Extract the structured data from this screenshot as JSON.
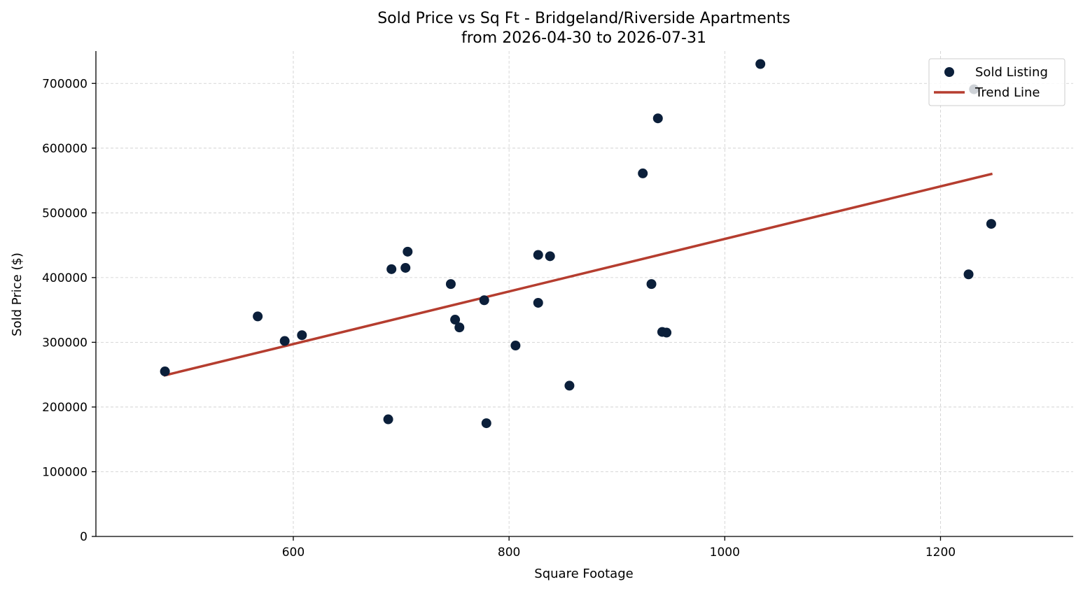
{
  "chart_data": {
    "type": "scatter",
    "title": "Sold Price vs Sq Ft - Bridgeland/Riverside Apartments",
    "subtitle": "from 2026-04-30 to 2026-07-31",
    "xlabel": "Square Footage",
    "ylabel": "Sold Price ($)",
    "xlim": [
      417,
      1323
    ],
    "ylim": [
      0,
      750000
    ],
    "xticks": [
      600,
      800,
      1000,
      1200
    ],
    "yticks": [
      0,
      100000,
      200000,
      300000,
      400000,
      500000,
      600000,
      700000
    ],
    "grid": true,
    "legend_position": "top-right",
    "series": [
      {
        "name": "Sold Listing",
        "kind": "scatter",
        "color": "#0b1f3a",
        "points": [
          {
            "x": 481,
            "y": 255000
          },
          {
            "x": 567,
            "y": 340000
          },
          {
            "x": 592,
            "y": 302000
          },
          {
            "x": 608,
            "y": 311000
          },
          {
            "x": 688,
            "y": 181000
          },
          {
            "x": 691,
            "y": 413000
          },
          {
            "x": 704,
            "y": 415000
          },
          {
            "x": 706,
            "y": 440000
          },
          {
            "x": 746,
            "y": 390000
          },
          {
            "x": 750,
            "y": 335000
          },
          {
            "x": 754,
            "y": 323000
          },
          {
            "x": 777,
            "y": 365000
          },
          {
            "x": 779,
            "y": 175000
          },
          {
            "x": 806,
            "y": 295000
          },
          {
            "x": 827,
            "y": 435000
          },
          {
            "x": 827,
            "y": 361000
          },
          {
            "x": 838,
            "y": 433000
          },
          {
            "x": 856,
            "y": 233000
          },
          {
            "x": 924,
            "y": 561000
          },
          {
            "x": 932,
            "y": 390000
          },
          {
            "x": 938,
            "y": 646000
          },
          {
            "x": 942,
            "y": 316000
          },
          {
            "x": 946,
            "y": 315000
          },
          {
            "x": 1033,
            "y": 730000
          },
          {
            "x": 1226,
            "y": 405000
          },
          {
            "x": 1231,
            "y": 691000
          },
          {
            "x": 1247,
            "y": 483000
          }
        ]
      },
      {
        "name": "Trend Line",
        "kind": "line",
        "color": "#b53d2f",
        "points": [
          {
            "x": 481,
            "y": 249000
          },
          {
            "x": 1247,
            "y": 560000
          }
        ]
      }
    ]
  }
}
